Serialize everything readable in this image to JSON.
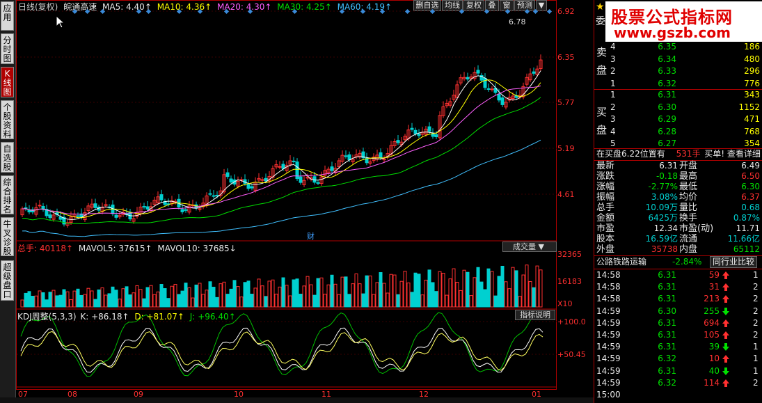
{
  "left_tabs": [
    {
      "label": "应用",
      "active": false
    },
    {
      "label": "分时图",
      "active": false
    },
    {
      "label": "K线图",
      "active": true
    },
    {
      "label": "个股资料",
      "active": false
    },
    {
      "label": "自选股",
      "active": false
    },
    {
      "label": "综合排名",
      "active": false
    },
    {
      "label": "牛叉诊股",
      "active": false
    },
    {
      "label": "超级盘口",
      "active": false
    }
  ],
  "header": {
    "period": "日线(复权)",
    "stock_name": "皖通高速",
    "ma5": "MA5: 4.40↑",
    "ma10": "MA10: 4.36↑",
    "ma20": "MA20: 4.30↑",
    "ma30": "MA30: 4.25↑",
    "ma60": "MA60: 4.19↑"
  },
  "toolbar": {
    "b1": "删自选",
    "b2": "均线",
    "b3": "复权",
    "b4": "叠",
    "b5": "窗",
    "b6": "预测",
    "b7": "▼"
  },
  "price_axis": [
    "6.92",
    "6.35",
    "5.77",
    "5.19",
    "4.61"
  ],
  "price_annotation": "6.78",
  "cai_label": "财",
  "volume_header": {
    "total": "总手: 40118↑",
    "mavol5": "MAVOL5: 37615↑",
    "mavol10": "MAVOL10: 37685↓",
    "dropdown": "成交量"
  },
  "volume_axis": [
    "32365",
    "16183",
    "X10"
  ],
  "kdj_header": {
    "name": "KDJ周整(5,3,3)",
    "k": "K: +86.18↑",
    "d": "D: +81.07↑",
    "j": "J: +96.40↑",
    "explain": "指标说明"
  },
  "kdj_axis": [
    "+100.0",
    "+50.45"
  ],
  "x_axis": [
    "07",
    "08",
    "09",
    "10",
    "11",
    "12",
    "01"
  ],
  "colors": {
    "up": "#ff3030",
    "down": "#00d0d0",
    "ma5": "#ffffff",
    "ma10": "#ffff00",
    "ma20": "#ff60ff",
    "ma30": "#00e000",
    "ma60": "#40c0ff"
  },
  "banner": {
    "title": "股票公式指标网",
    "url": "www.gszb.com"
  },
  "order_book": {
    "weibi_label": "委",
    "sell_label": "卖盘",
    "buy_label": "买盘",
    "sells": [
      {
        "n": "4",
        "p": "6.35",
        "v": "186"
      },
      {
        "n": "3",
        "p": "6.34",
        "v": "480"
      },
      {
        "n": "2",
        "p": "6.33",
        "v": "296"
      },
      {
        "n": "1",
        "p": "6.32",
        "v": "776"
      }
    ],
    "buys": [
      {
        "n": "1",
        "p": "6.31",
        "v": "343"
      },
      {
        "n": "2",
        "p": "6.30",
        "v": "1152"
      },
      {
        "n": "3",
        "p": "6.29",
        "v": "471"
      },
      {
        "n": "4",
        "p": "6.28",
        "v": "768"
      },
      {
        "n": "5",
        "p": "6.27",
        "v": "354"
      }
    ],
    "notice": "在买盘6.22位置有",
    "notice_vol": "531手",
    "notice_action": "买单! 查看详细"
  },
  "quote": [
    {
      "l1": "最新",
      "v1": "6.31",
      "l2": "开盘",
      "v2": "6.49"
    },
    {
      "l1": "涨跌",
      "v1": "-0.18",
      "l2": "最高",
      "v2": "6.50"
    },
    {
      "l1": "涨幅",
      "v1": "-2.77%",
      "l2": "最低",
      "v2": "6.30"
    },
    {
      "l1": "振幅",
      "v1": "3.08%",
      "l2": "均价",
      "v2": "6.37"
    },
    {
      "l1": "总手",
      "v1": "10.09万",
      "l2": "量比",
      "v2": "0.68"
    },
    {
      "l1": "金额",
      "v1": "6425万",
      "l2": "换手",
      "v2": "0.87%"
    },
    {
      "l1": "市盈",
      "v1": "12.34",
      "l2": "市盈(动)",
      "v2": "11.71"
    },
    {
      "l1": "股本",
      "v1": "16.59亿",
      "l2": "流通",
      "v2": "11.66亿"
    },
    {
      "l1": "外盘",
      "v1": "35738",
      "l2": "内盘",
      "v2": "65112"
    }
  ],
  "sector": {
    "name": "公路铁路运输",
    "change": "-2.84%",
    "compare": "同行业比较"
  },
  "ticks": [
    {
      "t": "14:58",
      "p": "6.31",
      "v": "59",
      "dir": "up",
      "n": "1"
    },
    {
      "t": "14:58",
      "p": "6.31",
      "v": "31",
      "dir": "up",
      "n": "2"
    },
    {
      "t": "14:58",
      "p": "6.31",
      "v": "213",
      "dir": "up",
      "n": "2"
    },
    {
      "t": "14:59",
      "p": "6.30",
      "v": "255",
      "dir": "down",
      "n": "2"
    },
    {
      "t": "14:59",
      "p": "6.31",
      "v": "694",
      "dir": "up",
      "n": "2"
    },
    {
      "t": "14:59",
      "p": "6.31",
      "v": "105",
      "dir": "up",
      "n": "2"
    },
    {
      "t": "14:59",
      "p": "6.31",
      "v": "39",
      "dir": "down",
      "n": "1"
    },
    {
      "t": "14:59",
      "p": "6.32",
      "v": "10",
      "dir": "up",
      "n": "1"
    },
    {
      "t": "14:59",
      "p": "6.31",
      "v": "40",
      "dir": "down",
      "n": "1"
    },
    {
      "t": "14:59",
      "p": "6.32",
      "v": "114",
      "dir": "up",
      "n": "2"
    },
    {
      "t": "15:00",
      "p": "",
      "v": "",
      "dir": "",
      "n": ""
    }
  ]
}
